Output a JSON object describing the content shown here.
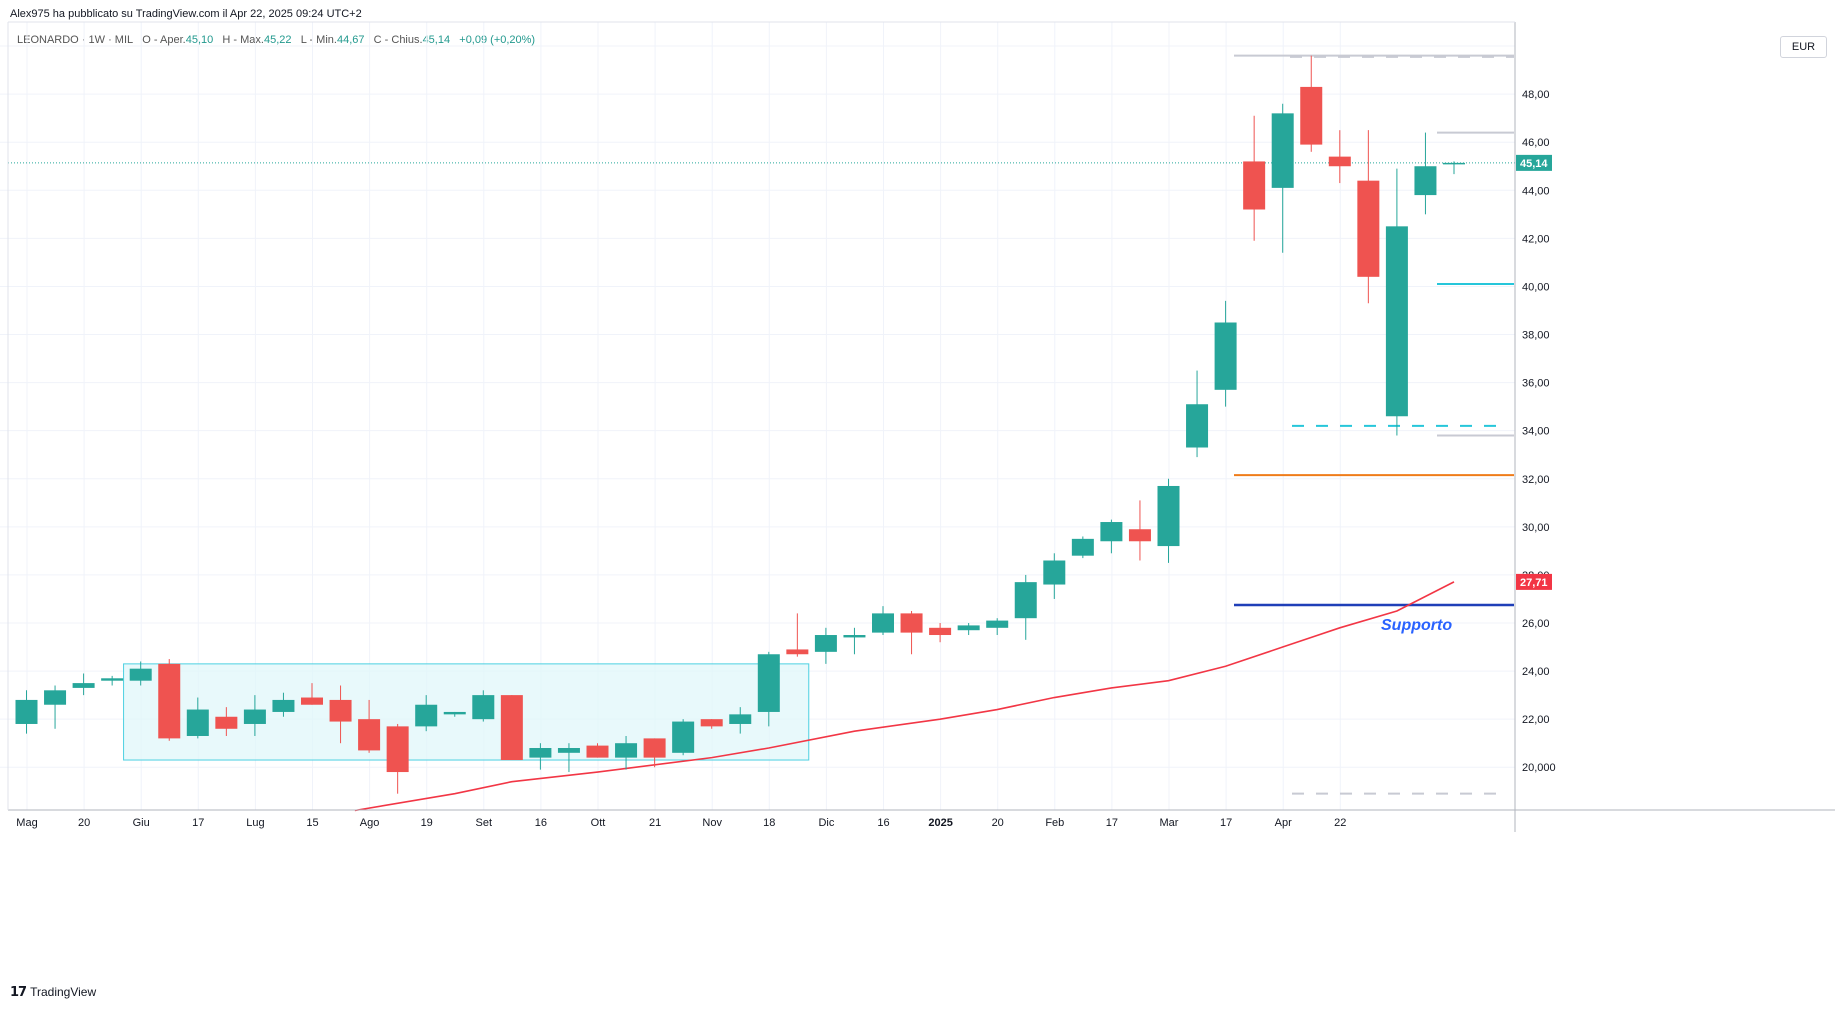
{
  "header": {
    "publisher_line": "Alex975 ha pubblicato su TradingView.com il Apr 22, 2025 09:24 UTC+2"
  },
  "legend": {
    "symbol": "LEONARDO · 1W · MIL",
    "open_label": "O - Aper.",
    "open": "45,10",
    "high_label": "H - Max.",
    "high": "45,22",
    "low_label": "L - Min.",
    "low": "44,67",
    "close_label": "C - Chius.",
    "close": "45,14",
    "change": "+0,09 (+0,20%)"
  },
  "axis": {
    "currency": "EUR"
  },
  "footer": {
    "brand": "TradingView"
  },
  "colors": {
    "up": "#26a69a",
    "down": "#ef5350",
    "ma": "#f23645",
    "support": "#1f3fb8",
    "orange": "#ef7c1a",
    "cyan": "#26c6da",
    "box_fill": "#e0f7fa",
    "box_border": "#4dd0e1"
  },
  "chart_data": {
    "type": "candlestick",
    "y_range": [
      18.2,
      50.8
    ],
    "y_ticks": [
      "20,000",
      "22,00",
      "24,00",
      "26,00",
      "28,00",
      "30,00",
      "32,00",
      "34,00",
      "36,00",
      "38,00",
      "40,00",
      "42,00",
      "44,00",
      "46,00",
      "48,00"
    ],
    "x_labels": [
      "Mag",
      "20",
      "Giu",
      "17",
      "Lug",
      "15",
      "Ago",
      "19",
      "Set",
      "16",
      "Ott",
      "21",
      "Nov",
      "18",
      "Dic",
      "16",
      "2025",
      "20",
      "Feb",
      "17",
      "Mar",
      "17",
      "Apr",
      "22"
    ],
    "candles": [
      {
        "o": 21.8,
        "h": 23.2,
        "l": 21.4,
        "c": 22.8
      },
      {
        "o": 22.6,
        "h": 23.4,
        "l": 21.6,
        "c": 23.2
      },
      {
        "o": 23.3,
        "h": 23.9,
        "l": 23.0,
        "c": 23.5
      },
      {
        "o": 23.6,
        "h": 23.8,
        "l": 23.4,
        "c": 23.7
      },
      {
        "o": 23.6,
        "h": 24.4,
        "l": 23.4,
        "c": 24.1
      },
      {
        "o": 24.3,
        "h": 24.5,
        "l": 21.1,
        "c": 21.2
      },
      {
        "o": 21.3,
        "h": 22.9,
        "l": 21.2,
        "c": 22.4
      },
      {
        "o": 22.1,
        "h": 22.5,
        "l": 21.3,
        "c": 21.6
      },
      {
        "o": 21.8,
        "h": 23.0,
        "l": 21.3,
        "c": 22.4
      },
      {
        "o": 22.3,
        "h": 23.1,
        "l": 22.1,
        "c": 22.8
      },
      {
        "o": 22.9,
        "h": 23.5,
        "l": 22.6,
        "c": 22.6
      },
      {
        "o": 22.8,
        "h": 23.4,
        "l": 21.0,
        "c": 21.9
      },
      {
        "o": 22.0,
        "h": 22.8,
        "l": 20.6,
        "c": 20.7
      },
      {
        "o": 21.7,
        "h": 21.8,
        "l": 18.9,
        "c": 19.8
      },
      {
        "o": 21.7,
        "h": 23.0,
        "l": 21.5,
        "c": 22.6
      },
      {
        "o": 22.2,
        "h": 22.3,
        "l": 22.1,
        "c": 22.3
      },
      {
        "o": 22.0,
        "h": 23.2,
        "l": 21.9,
        "c": 23.0
      },
      {
        "o": 23.0,
        "h": 23.0,
        "l": 20.3,
        "c": 20.3
      },
      {
        "o": 20.4,
        "h": 21.0,
        "l": 19.9,
        "c": 20.8
      },
      {
        "o": 20.6,
        "h": 21.0,
        "l": 19.8,
        "c": 20.8
      },
      {
        "o": 20.9,
        "h": 21.0,
        "l": 20.4,
        "c": 20.4
      },
      {
        "o": 20.4,
        "h": 21.3,
        "l": 19.9,
        "c": 21.0
      },
      {
        "o": 21.2,
        "h": 21.2,
        "l": 20.0,
        "c": 20.4
      },
      {
        "o": 20.6,
        "h": 22.0,
        "l": 20.5,
        "c": 21.9
      },
      {
        "o": 22.0,
        "h": 22.0,
        "l": 21.6,
        "c": 21.7
      },
      {
        "o": 21.8,
        "h": 22.5,
        "l": 21.4,
        "c": 22.2
      },
      {
        "o": 22.3,
        "h": 24.8,
        "l": 21.7,
        "c": 24.7
      },
      {
        "o": 24.9,
        "h": 26.4,
        "l": 24.6,
        "c": 24.7
      },
      {
        "o": 24.8,
        "h": 25.8,
        "l": 24.3,
        "c": 25.5
      },
      {
        "o": 25.4,
        "h": 25.8,
        "l": 24.7,
        "c": 25.5
      },
      {
        "o": 25.6,
        "h": 26.7,
        "l": 25.5,
        "c": 26.4
      },
      {
        "o": 26.4,
        "h": 26.5,
        "l": 24.7,
        "c": 25.6
      },
      {
        "o": 25.8,
        "h": 26.0,
        "l": 25.2,
        "c": 25.5
      },
      {
        "o": 25.7,
        "h": 26.0,
        "l": 25.5,
        "c": 25.9
      },
      {
        "o": 25.8,
        "h": 26.2,
        "l": 25.5,
        "c": 26.1
      },
      {
        "o": 26.2,
        "h": 28.0,
        "l": 25.3,
        "c": 27.7
      },
      {
        "o": 27.6,
        "h": 28.9,
        "l": 27.0,
        "c": 28.6
      },
      {
        "o": 28.8,
        "h": 29.6,
        "l": 28.7,
        "c": 29.5
      },
      {
        "o": 29.4,
        "h": 30.3,
        "l": 28.9,
        "c": 30.2
      },
      {
        "o": 29.9,
        "h": 31.1,
        "l": 28.6,
        "c": 29.4
      },
      {
        "o": 29.2,
        "h": 32.0,
        "l": 28.5,
        "c": 31.7
      },
      {
        "o": 33.3,
        "h": 36.5,
        "l": 32.9,
        "c": 35.1
      },
      {
        "o": 35.7,
        "h": 39.4,
        "l": 35.0,
        "c": 38.5
      },
      {
        "o": 45.2,
        "h": 47.1,
        "l": 41.9,
        "c": 43.2
      },
      {
        "o": 44.1,
        "h": 47.6,
        "l": 41.4,
        "c": 47.2
      },
      {
        "o": 48.3,
        "h": 49.6,
        "l": 45.6,
        "c": 45.9
      },
      {
        "o": 45.4,
        "h": 46.5,
        "l": 44.3,
        "c": 45.0
      },
      {
        "o": 44.4,
        "h": 46.5,
        "l": 39.3,
        "c": 40.4
      },
      {
        "o": 34.6,
        "h": 44.9,
        "l": 33.8,
        "c": 42.5
      },
      {
        "o": 43.8,
        "h": 46.4,
        "l": 43.0,
        "c": 45.0
      },
      {
        "o": 45.1,
        "h": 45.2,
        "l": 44.67,
        "c": 45.14
      }
    ],
    "ma_line": [
      {
        "i": 11.5,
        "v": 18.2
      },
      {
        "i": 15,
        "v": 18.9
      },
      {
        "i": 17,
        "v": 19.4
      },
      {
        "i": 20,
        "v": 19.8
      },
      {
        "i": 24,
        "v": 20.4
      },
      {
        "i": 26,
        "v": 20.8
      },
      {
        "i": 29,
        "v": 21.5
      },
      {
        "i": 32,
        "v": 22.0
      },
      {
        "i": 34,
        "v": 22.4
      },
      {
        "i": 36,
        "v": 22.9
      },
      {
        "i": 38,
        "v": 23.3
      },
      {
        "i": 40,
        "v": 23.6
      },
      {
        "i": 42,
        "v": 24.2
      },
      {
        "i": 44,
        "v": 25.0
      },
      {
        "i": 46,
        "v": 25.8
      },
      {
        "i": 48,
        "v": 26.5
      },
      {
        "i": 50,
        "v": 27.71
      }
    ],
    "price_labels": {
      "last": "45,14",
      "ma": "27,71"
    },
    "annotation": "Supporto"
  }
}
